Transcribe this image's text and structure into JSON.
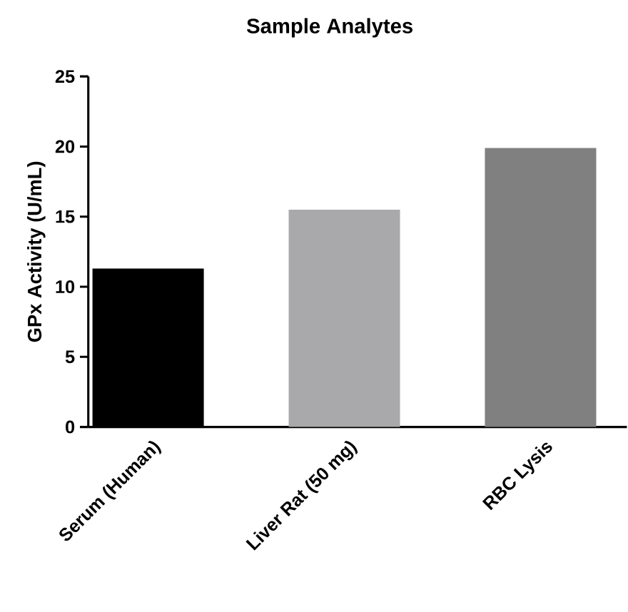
{
  "chart_data": {
    "type": "bar",
    "title": "Sample Analytes",
    "ylabel": "GPx Activity (U/mL)",
    "categories": [
      "Serum (Human)",
      "Liver Rat (50 mg)",
      "RBC Lysis"
    ],
    "values": [
      11.3,
      15.5,
      19.9
    ],
    "colors": [
      "#000000",
      "#a9a9ab",
      "#808080"
    ],
    "ylim": [
      0,
      25
    ],
    "yticks": [
      0,
      5,
      10,
      15,
      20,
      25
    ],
    "grid": false
  }
}
